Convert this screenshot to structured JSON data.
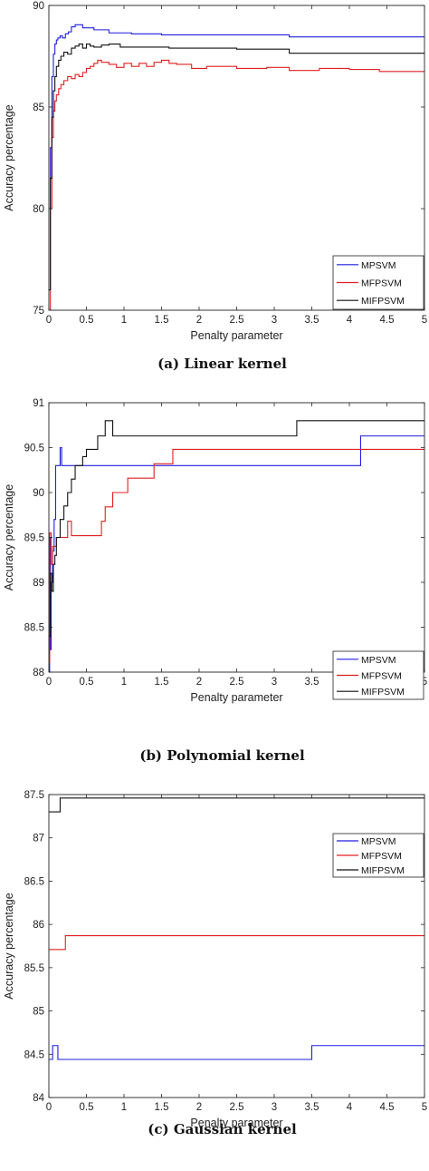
{
  "chart_data": [
    {
      "type": "line",
      "caption": "(a) Linear kernel",
      "xlabel": "Penalty parameter",
      "ylabel": "Accuracy percentage",
      "xlim": [
        0,
        5
      ],
      "ylim": [
        75,
        90
      ],
      "xticks": [
        "0",
        "0.5",
        "1",
        "1.5",
        "2",
        "2.5",
        "3",
        "3.5",
        "4",
        "4.5",
        "5"
      ],
      "yticks": [
        "75",
        "80",
        "85",
        "90"
      ],
      "grid": false,
      "legend_position": "bottom-right",
      "series": [
        {
          "name": "MPSVM",
          "color": "#1f1fe0",
          "step": true,
          "x": [
            0,
            0.02,
            0.04,
            0.06,
            0.08,
            0.1,
            0.12,
            0.15,
            0.18,
            0.22,
            0.26,
            0.3,
            0.35,
            0.45,
            0.6,
            0.8,
            1.1,
            1.5,
            2.0,
            2.5,
            3.0,
            3.2,
            5.0
          ],
          "y": [
            76.0,
            83.0,
            86.5,
            87.6,
            88.1,
            88.3,
            88.4,
            88.5,
            88.4,
            88.6,
            88.7,
            88.95,
            89.05,
            88.9,
            88.8,
            88.65,
            88.6,
            88.55,
            88.55,
            88.55,
            88.55,
            88.45,
            88.45
          ]
        },
        {
          "name": "MFPSVM",
          "color": "#e02020",
          "step": true,
          "x": [
            0,
            0.02,
            0.04,
            0.06,
            0.08,
            0.1,
            0.13,
            0.16,
            0.2,
            0.25,
            0.3,
            0.35,
            0.4,
            0.45,
            0.5,
            0.55,
            0.6,
            0.65,
            0.7,
            0.8,
            0.9,
            1.0,
            1.1,
            1.2,
            1.3,
            1.4,
            1.5,
            1.6,
            1.7,
            1.9,
            2.1,
            2.5,
            2.9,
            3.2,
            3.6,
            4.0,
            4.4,
            5.0
          ],
          "y": [
            75.0,
            80.0,
            83.5,
            84.8,
            85.3,
            85.6,
            85.9,
            86.1,
            86.3,
            86.5,
            86.4,
            86.6,
            86.5,
            86.7,
            86.9,
            87.0,
            87.15,
            87.3,
            87.2,
            87.1,
            86.95,
            87.15,
            87.0,
            87.15,
            87.0,
            87.2,
            87.3,
            87.15,
            87.1,
            86.9,
            87.0,
            86.9,
            86.95,
            86.8,
            86.9,
            86.85,
            86.75,
            86.7
          ]
        },
        {
          "name": "MIFPSVM",
          "color": "#111111",
          "step": true,
          "x": [
            0,
            0.02,
            0.04,
            0.06,
            0.08,
            0.1,
            0.13,
            0.16,
            0.2,
            0.25,
            0.3,
            0.35,
            0.4,
            0.45,
            0.5,
            0.55,
            0.6,
            0.7,
            0.8,
            0.95,
            1.2,
            1.6,
            2.0,
            2.5,
            2.9,
            3.2,
            5.0
          ],
          "y": [
            76.0,
            81.5,
            84.5,
            85.8,
            86.5,
            87.0,
            87.3,
            87.5,
            87.7,
            87.6,
            87.9,
            88.0,
            88.1,
            87.9,
            88.1,
            88.0,
            87.95,
            88.05,
            88.1,
            87.95,
            87.95,
            87.9,
            87.9,
            87.85,
            87.85,
            87.65,
            87.65
          ]
        }
      ]
    },
    {
      "type": "line",
      "caption": "(b) Polynomial kernel",
      "xlabel": "Penalty parameter",
      "ylabel": "Accuracy percentage",
      "xlim": [
        0,
        5
      ],
      "ylim": [
        88,
        91
      ],
      "xticks": [
        "0",
        "0.5",
        "1",
        "1.5",
        "2",
        "2.5",
        "3",
        "3.5",
        "4",
        "4.5",
        "5"
      ],
      "yticks": [
        "88",
        "88.5",
        "89",
        "89.5",
        "90",
        "90.5",
        "91"
      ],
      "grid": false,
      "legend_position": "bottom-right",
      "series": [
        {
          "name": "MPSVM",
          "color": "#1f1fe0",
          "step": true,
          "x": [
            0,
            0.01,
            0.02,
            0.03,
            0.05,
            0.07,
            0.09,
            0.11,
            0.15,
            0.17,
            0.2,
            4.15,
            5.0
          ],
          "y": [
            88.0,
            89.5,
            88.25,
            89.0,
            89.35,
            89.7,
            90.3,
            90.3,
            90.5,
            90.3,
            90.3,
            90.63,
            90.63
          ]
        },
        {
          "name": "MFPSVM",
          "color": "#e02020",
          "step": true,
          "x": [
            0,
            0.01,
            0.03,
            0.05,
            0.1,
            0.25,
            0.3,
            0.35,
            0.5,
            0.7,
            0.75,
            0.8,
            0.85,
            0.95,
            1.05,
            1.4,
            1.65,
            5.0
          ],
          "y": [
            88.1,
            89.55,
            89.2,
            89.4,
            89.5,
            89.68,
            89.52,
            89.52,
            89.52,
            89.68,
            89.84,
            89.84,
            90.0,
            90.0,
            90.16,
            90.32,
            90.48,
            90.48
          ]
        },
        {
          "name": "MIFPSVM",
          "color": "#111111",
          "step": true,
          "x": [
            0,
            0.02,
            0.04,
            0.06,
            0.08,
            0.1,
            0.15,
            0.2,
            0.25,
            0.3,
            0.35,
            0.4,
            0.45,
            0.5,
            0.55,
            0.65,
            0.75,
            0.8,
            0.85,
            3.3,
            5.0
          ],
          "y": [
            88.4,
            89.1,
            88.9,
            89.2,
            89.3,
            89.5,
            89.7,
            89.85,
            90.0,
            90.15,
            90.3,
            90.3,
            90.4,
            90.48,
            90.48,
            90.63,
            90.8,
            90.8,
            90.63,
            90.8,
            90.8
          ]
        }
      ]
    },
    {
      "type": "line",
      "caption": "(c) Gaussian kernel",
      "xlabel": "Penalty parameter",
      "ylabel": "Accuracy percentage",
      "xlim": [
        0,
        5
      ],
      "ylim": [
        84,
        87.5
      ],
      "xticks": [
        "0",
        "0.5",
        "1",
        "1.5",
        "2",
        "2.5",
        "3",
        "3.5",
        "4",
        "4.5",
        "5"
      ],
      "yticks": [
        "84",
        "84.5",
        "85",
        "85.5",
        "86",
        "86.5",
        "87",
        "87.5"
      ],
      "grid": false,
      "legend_position": "top-right",
      "series": [
        {
          "name": "MPSVM",
          "color": "#1f1fe0",
          "step": true,
          "x": [
            0,
            0.05,
            0.12,
            3.5,
            5.0
          ],
          "y": [
            84.44,
            84.6,
            84.44,
            84.6,
            84.6
          ]
        },
        {
          "name": "MFPSVM",
          "color": "#e02020",
          "step": true,
          "x": [
            0,
            0.22,
            5.0
          ],
          "y": [
            85.71,
            85.87,
            85.87
          ]
        },
        {
          "name": "MIFPSVM",
          "color": "#111111",
          "step": true,
          "x": [
            0,
            0.15,
            5.0
          ],
          "y": [
            87.3,
            87.46,
            87.46
          ]
        }
      ]
    }
  ]
}
